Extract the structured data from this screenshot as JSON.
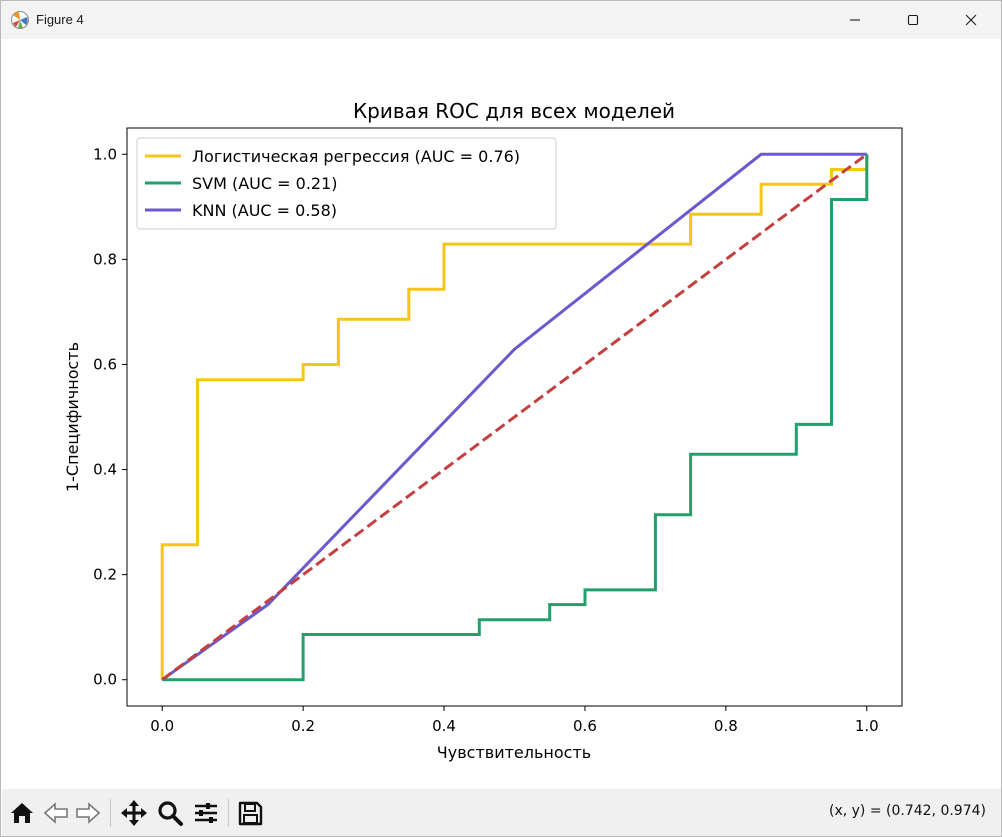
{
  "window": {
    "title": "Figure 4"
  },
  "toolbar": {
    "buttons": [
      "home-icon",
      "back-arrow-icon",
      "forward-arrow-icon",
      "move-icon",
      "zoom-icon",
      "configure-icon",
      "save-icon"
    ],
    "coords_text": "(x, y) = (0.742, 0.974)"
  },
  "colors": {
    "logistic": "#f5c518",
    "svm": "#22a06b",
    "knn": "#6a5acd",
    "diagonal": "#c44040"
  },
  "chart_data": {
    "type": "line",
    "title": "Кривая ROC для всех моделей",
    "xlabel": "Чувствительность",
    "ylabel": "1-Специфичность",
    "xlim": [
      -0.05,
      1.05
    ],
    "ylim": [
      -0.05,
      1.05
    ],
    "xticks": [
      "0.0",
      "0.2",
      "0.4",
      "0.6",
      "0.8",
      "1.0"
    ],
    "yticks": [
      "0.0",
      "0.2",
      "0.4",
      "0.6",
      "0.8",
      "1.0"
    ],
    "grid": false,
    "legend_position": "top-left",
    "series": [
      {
        "name": "Логистическая регрессия (AUC = 0.76)",
        "color_key": "logistic",
        "style": "solid",
        "x": [
          0.0,
          0.0,
          0.05,
          0.05,
          0.2,
          0.2,
          0.25,
          0.25,
          0.35,
          0.35,
          0.4,
          0.4,
          0.75,
          0.75,
          0.85,
          0.85,
          0.95,
          0.95,
          1.0,
          1.0
        ],
        "y": [
          0.0,
          0.257,
          0.257,
          0.571,
          0.571,
          0.6,
          0.6,
          0.686,
          0.686,
          0.743,
          0.743,
          0.829,
          0.829,
          0.886,
          0.886,
          0.943,
          0.943,
          0.971,
          0.971,
          1.0
        ]
      },
      {
        "name": "SVM (AUC = 0.21)",
        "color_key": "svm",
        "style": "solid",
        "x": [
          0.0,
          0.2,
          0.2,
          0.45,
          0.45,
          0.55,
          0.55,
          0.6,
          0.6,
          0.7,
          0.7,
          0.75,
          0.75,
          0.9,
          0.9,
          0.95,
          0.95,
          1.0,
          1.0
        ],
        "y": [
          0.0,
          0.0,
          0.086,
          0.086,
          0.114,
          0.114,
          0.143,
          0.143,
          0.171,
          0.171,
          0.314,
          0.314,
          0.429,
          0.429,
          0.486,
          0.486,
          0.914,
          0.914,
          1.0
        ]
      },
      {
        "name": "KNN (AUC = 0.58)",
        "color_key": "knn",
        "style": "solid",
        "x": [
          0.0,
          0.15,
          0.5,
          0.85,
          1.0
        ],
        "y": [
          0.0,
          0.143,
          0.629,
          1.0,
          1.0
        ]
      },
      {
        "name": "",
        "color_key": "diagonal",
        "style": "dashed",
        "x": [
          0.0,
          1.0
        ],
        "y": [
          0.0,
          1.0
        ]
      }
    ]
  }
}
